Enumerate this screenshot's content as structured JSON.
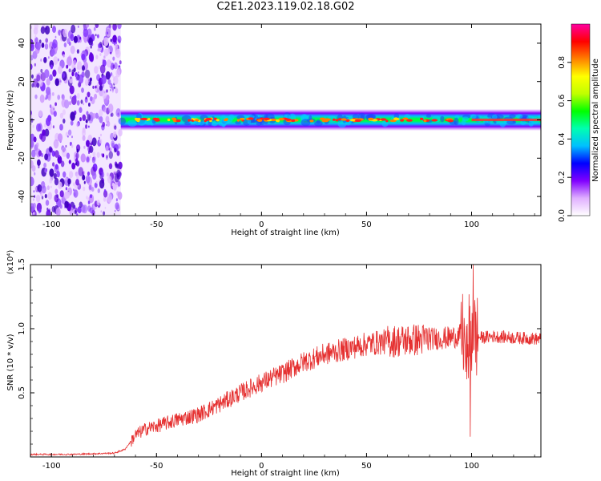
{
  "title": "C2E1.2023.119.02.18.G02",
  "chart_data": [
    {
      "type": "heatmap",
      "xlabel": "Height of straight line (km)",
      "ylabel": "Frequency (Hz)",
      "xlim": [
        -110,
        133
      ],
      "ylim": [
        -50,
        50
      ],
      "xticks": [
        "-100",
        "-50",
        "0",
        "50",
        "100"
      ],
      "yticks": [
        "-40",
        "-20",
        "0",
        "20",
        "40"
      ],
      "colorbar": {
        "label": "Normalized spectral amplitude",
        "range": [
          0,
          1
        ],
        "ticks": [
          "0.0",
          "0.2",
          "0.4",
          "0.6",
          "0.8"
        ],
        "colors": [
          "#ffffff",
          "#e0b0ff",
          "#8000ff",
          "#0000ff",
          "#00c0ff",
          "#00ffb0",
          "#00ff00",
          "#c0ff00",
          "#ffff00",
          "#ff8000",
          "#ff0000",
          "#ff00a0"
        ]
      },
      "noise_region_x": [
        -110,
        -67
      ],
      "signal_band_x": [
        -67,
        133
      ],
      "signal_center_frequency": 0,
      "signal_halfwidth_hz": 2.5
    },
    {
      "type": "line",
      "xlabel": "Height of straight line (km)",
      "ylabel": "SNR (10 * v/v)",
      "y_multiplier": "(x10⁴)",
      "xlim": [
        -110,
        133
      ],
      "ylim": [
        0,
        1.5
      ],
      "xticks": [
        "-100",
        "-50",
        "0",
        "50",
        "100"
      ],
      "yticks": [
        "0.5",
        "1.0",
        "1.5"
      ],
      "color": "#e53030",
      "series": [
        {
          "x": [
            -110,
            -90,
            -70,
            -65,
            -60,
            -55,
            -50,
            -40,
            -30,
            -20,
            -10,
            0,
            10,
            20,
            30,
            40,
            50,
            60,
            70,
            80,
            90,
            95,
            98,
            100,
            102,
            105,
            110,
            120,
            133
          ],
          "y": [
            0.02,
            0.02,
            0.03,
            0.06,
            0.17,
            0.22,
            0.24,
            0.29,
            0.33,
            0.41,
            0.5,
            0.58,
            0.65,
            0.74,
            0.8,
            0.84,
            0.88,
            0.9,
            0.91,
            0.92,
            0.93,
            0.95,
            0.92,
            0.95,
            0.94,
            0.93,
            0.94,
            0.93,
            0.92
          ]
        }
      ]
    }
  ]
}
